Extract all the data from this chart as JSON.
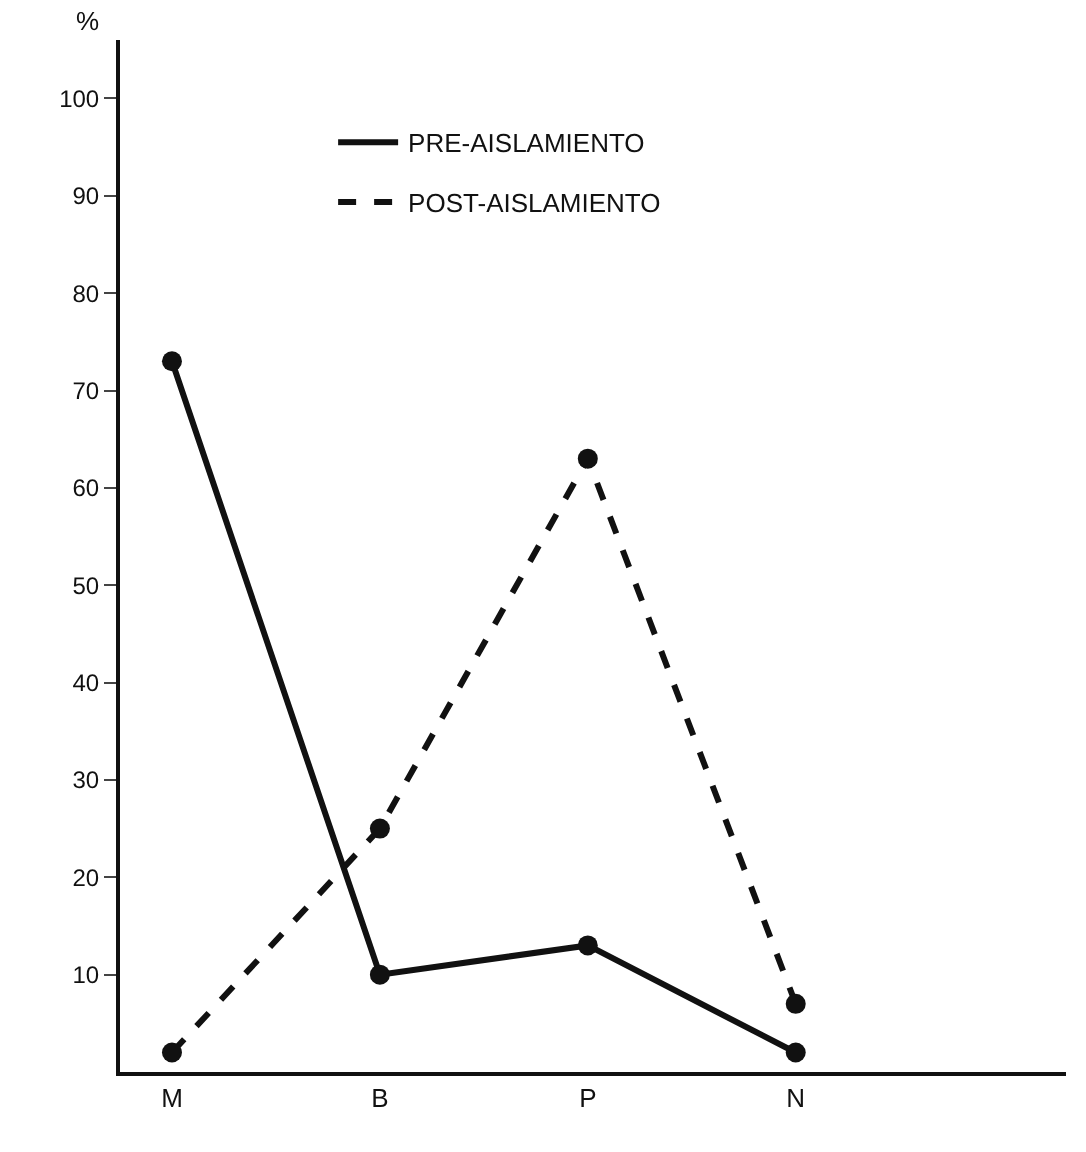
{
  "chart_data": {
    "type": "line",
    "ylabel": "%",
    "categories": [
      "M",
      "B",
      "P",
      "N"
    ],
    "series": [
      {
        "name": "PRE-AISLAMIENTO",
        "color": "#111111",
        "line_style": "solid",
        "values": [
          73,
          10,
          13,
          2
        ]
      },
      {
        "name": "POST-AISLAMIENTO",
        "color": "#111111",
        "line_style": "dashed",
        "values": [
          2,
          25,
          63,
          7
        ]
      }
    ],
    "ylim": [
      0,
      106
    ],
    "yticks": [
      10,
      20,
      30,
      40,
      50,
      60,
      70,
      80,
      90,
      100
    ],
    "marker": "circle",
    "grid": false,
    "legend": "top"
  }
}
